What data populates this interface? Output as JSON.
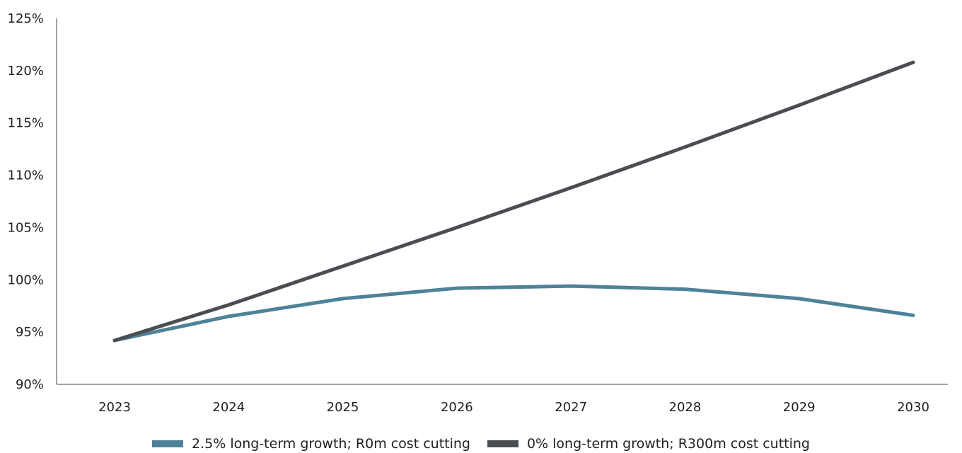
{
  "chart_data": {
    "type": "line",
    "title": "",
    "xlabel": "",
    "ylabel": "",
    "categories": [
      "2023",
      "2024",
      "2025",
      "2026",
      "2027",
      "2028",
      "2029",
      "2030"
    ],
    "ylim": [
      90,
      125
    ],
    "yticks": [
      90,
      95,
      100,
      105,
      110,
      115,
      120,
      125
    ],
    "ytick_labels": [
      "90%",
      "95%",
      "100%",
      "105%",
      "110%",
      "115%",
      "120%",
      "125%"
    ],
    "grid": false,
    "legend_position": "bottom-center",
    "series": [
      {
        "name": "2.5% long-term growth; R0m cost cutting",
        "color": "#4e8298",
        "values": [
          94.2,
          96.5,
          98.2,
          99.2,
          99.4,
          99.1,
          98.2,
          96.6
        ]
      },
      {
        "name": "0% long-term growth; R300m cost cutting",
        "color": "#4a4d52",
        "values": [
          94.2,
          97.6,
          101.3,
          105.0,
          108.8,
          112.7,
          116.7,
          120.8
        ]
      }
    ]
  }
}
